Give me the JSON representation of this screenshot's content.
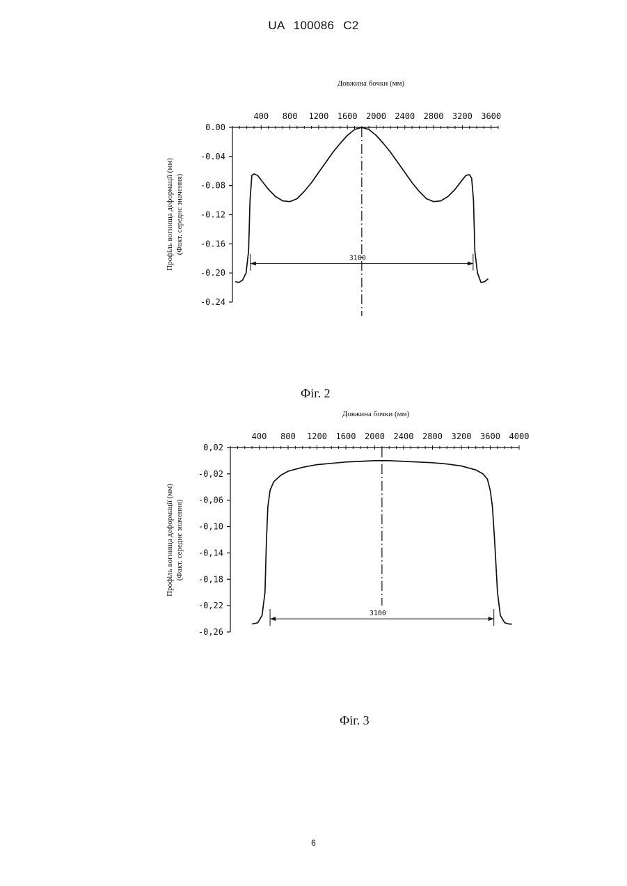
{
  "header": {
    "doc_number": "UA   100086   C2"
  },
  "page_number": "6",
  "captions": {
    "fig2": "Фіг. 2",
    "fig3": "Фіг. 3"
  },
  "chart_data": [
    {
      "type": "line",
      "figure": "Фіг. 2",
      "title": "Довжина бочки (мм)",
      "ylabel": "Профіль вогнища деформації (мм)",
      "ylabel2": "(Факт. середнє значення)",
      "xlim": [
        0,
        3700
      ],
      "ylim": [
        -0.24,
        0.0
      ],
      "x_ticks": [
        "400",
        "800",
        "1200",
        "1600",
        "2000",
        "2400",
        "2800",
        "3200",
        "3600"
      ],
      "y_ticks": [
        "0.00",
        "-0.04",
        "-0.08",
        "-0.12",
        "-0.16",
        "-0.20",
        "-0.24"
      ],
      "center_x": 1800,
      "annotation": {
        "text": "3100",
        "x_from": 250,
        "x_to": 3350,
        "y": -0.187
      },
      "series": [
        {
          "x": [
            40,
            90,
            140,
            190,
            225,
            245,
            270,
            300,
            350,
            420,
            500,
            600,
            700,
            800,
            900,
            1000,
            1100,
            1200,
            1300,
            1400,
            1500,
            1600,
            1700,
            1800,
            1900,
            2000,
            2100,
            2200,
            2300,
            2400,
            2500,
            2600,
            2700,
            2800,
            2900,
            3000,
            3100,
            3200,
            3250,
            3300,
            3330,
            3355,
            3375,
            3410,
            3460,
            3510,
            3560
          ],
          "y": [
            -0.212,
            -0.213,
            -0.21,
            -0.2,
            -0.17,
            -0.1,
            -0.066,
            -0.064,
            -0.066,
            -0.075,
            -0.085,
            -0.095,
            -0.101,
            -0.102,
            -0.098,
            -0.088,
            -0.076,
            -0.062,
            -0.048,
            -0.034,
            -0.022,
            -0.011,
            -0.003,
            0.0,
            -0.003,
            -0.011,
            -0.022,
            -0.034,
            -0.048,
            -0.062,
            -0.076,
            -0.088,
            -0.098,
            -0.102,
            -0.101,
            -0.095,
            -0.085,
            -0.072,
            -0.066,
            -0.065,
            -0.07,
            -0.1,
            -0.17,
            -0.2,
            -0.213,
            -0.212,
            -0.208
          ]
        }
      ]
    },
    {
      "type": "line",
      "figure": "Фіг. 3",
      "title": "Довжина бочки (мм)",
      "ylabel": "Профіль вогнища деформації (мм)",
      "ylabel2": "(Факт. середнє значення)",
      "xlim": [
        0,
        4000
      ],
      "ylim": [
        -0.26,
        0.02
      ],
      "x_ticks": [
        "400",
        "800",
        "1200",
        "1600",
        "2000",
        "2400",
        "2800",
        "3200",
        "3600",
        "4000"
      ],
      "y_ticks": [
        "0,02",
        "-0,02",
        "-0,06",
        "-0,10",
        "-0,14",
        "-0,18",
        "-0,22",
        "-0,26"
      ],
      "center_x": 2100,
      "annotation": {
        "text": "3100",
        "x_from": 550,
        "x_to": 3650,
        "y": -0.24
      },
      "series": [
        {
          "x": [
            300,
            380,
            440,
            480,
            500,
            520,
            550,
            600,
            700,
            800,
            1000,
            1200,
            1400,
            1600,
            1800,
            2000,
            2100,
            2200,
            2400,
            2600,
            2800,
            3000,
            3200,
            3400,
            3500,
            3560,
            3600,
            3630,
            3660,
            3700,
            3740,
            3800,
            3860,
            3900
          ],
          "y": [
            -0.248,
            -0.246,
            -0.235,
            -0.2,
            -0.12,
            -0.07,
            -0.045,
            -0.032,
            -0.022,
            -0.016,
            -0.01,
            -0.006,
            -0.004,
            -0.002,
            -0.001,
            0.0,
            0.0,
            0.0,
            -0.001,
            -0.002,
            -0.003,
            -0.005,
            -0.008,
            -0.014,
            -0.02,
            -0.028,
            -0.045,
            -0.07,
            -0.12,
            -0.2,
            -0.235,
            -0.246,
            -0.248,
            -0.248
          ]
        }
      ]
    }
  ]
}
